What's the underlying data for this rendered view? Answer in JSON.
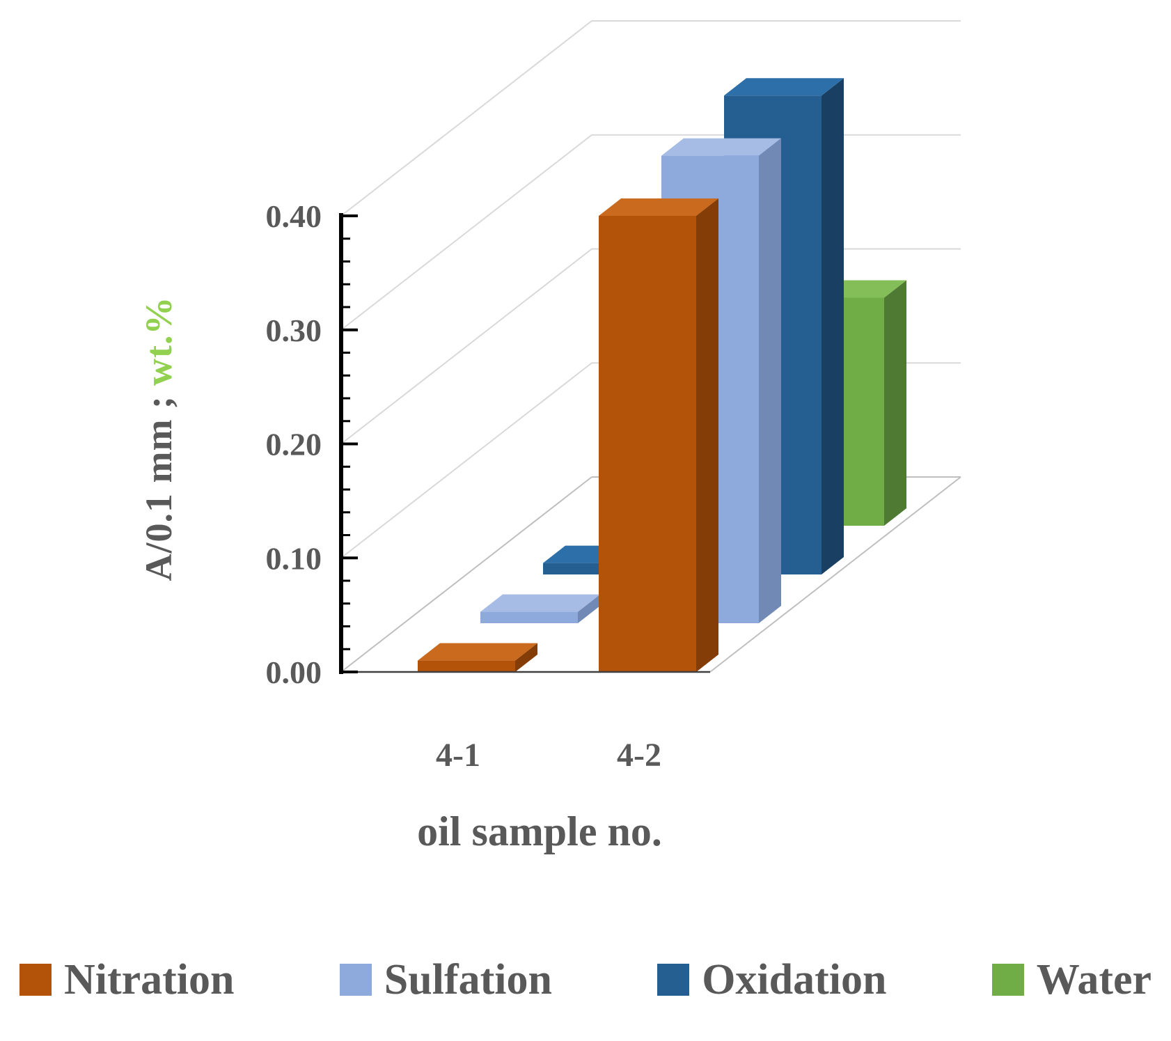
{
  "chart_data": {
    "type": "bar",
    "projection": "3d",
    "title": "",
    "categories": [
      "4-1",
      "4-2"
    ],
    "series": [
      {
        "name": "Nitration",
        "values": [
          0.01,
          0.4
        ],
        "color": "#B35309",
        "color_side": "#843D06",
        "color_top": "#C96A1E"
      },
      {
        "name": "Sulfation",
        "values": [
          0.01,
          0.41
        ],
        "color": "#8EA9DB",
        "color_side": "#7189B5",
        "color_top": "#A6BCE5"
      },
      {
        "name": "Oxidation",
        "values": [
          0.01,
          0.42
        ],
        "color": "#255E91",
        "color_side": "#193F62",
        "color_top": "#2D6FA9"
      },
      {
        "name": "Water",
        "values": [
          0.0,
          0.2
        ],
        "color": "#70AD47",
        "color_side": "#4F7A33",
        "color_top": "#83BE59"
      }
    ],
    "xlabel": "oil sample no.",
    "ylabel_main": "A/0.1 mm ;",
    "ylabel_accent": "wt.%",
    "ylim": [
      0,
      0.4
    ],
    "yticks": [
      {
        "label": "0.00",
        "value": 0.0
      },
      {
        "label": "0.10",
        "value": 0.1
      },
      {
        "label": "0.20",
        "value": 0.2
      },
      {
        "label": "0.30",
        "value": 0.3
      },
      {
        "label": "0.40",
        "value": 0.4
      }
    ],
    "minor_tick_step": 0.02,
    "grid": true,
    "legend_position": "bottom"
  },
  "colors": {
    "text": "#595959",
    "accent_green": "#92D050",
    "gridline": "#D9D9D9",
    "floor_edge": "#BFBFBF",
    "axis": "#000000",
    "background": "#FFFFFF"
  }
}
